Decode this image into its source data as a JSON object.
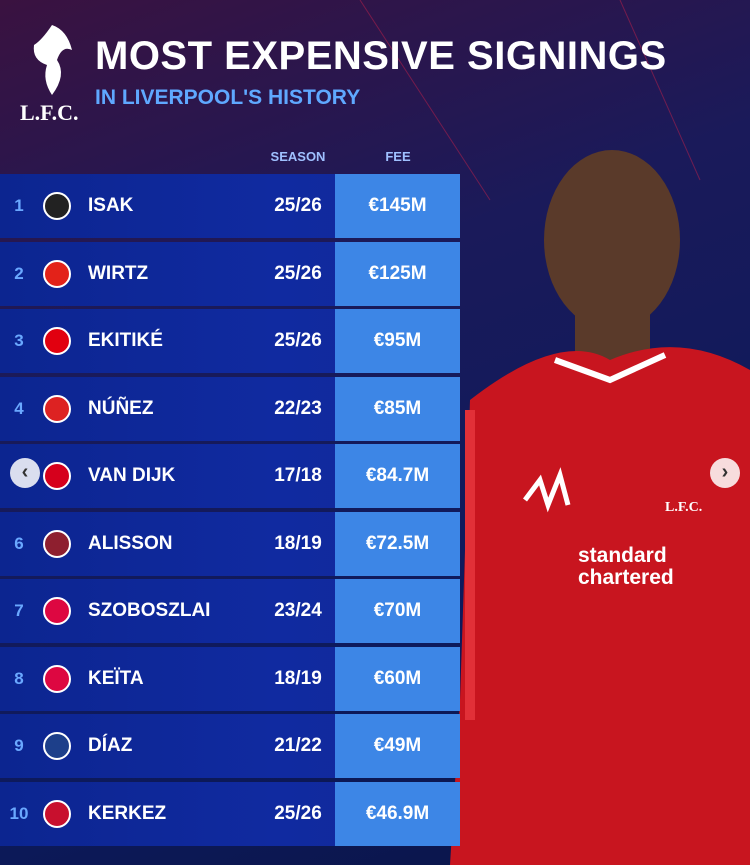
{
  "header": {
    "logo_text": "L.F.C.",
    "title": "MOST EXPENSIVE SIGNINGS",
    "subtitle": "IN LIVERPOOL'S HISTORY"
  },
  "table": {
    "columns": [
      "SEASON",
      "FEE"
    ],
    "rows": [
      {
        "rank": "1",
        "player": "ISAK",
        "season": "25/26",
        "fee": "€145M"
      },
      {
        "rank": "2",
        "player": "WIRTZ",
        "season": "25/26",
        "fee": "€125M"
      },
      {
        "rank": "3",
        "player": "EKITIKÉ",
        "season": "25/26",
        "fee": "€95M"
      },
      {
        "rank": "4",
        "player": "NÚÑEZ",
        "season": "22/23",
        "fee": "€85M"
      },
      {
        "rank": null,
        "player": "VAN DIJK",
        "season": "17/18",
        "fee": "€84.7M"
      },
      {
        "rank": "6",
        "player": "ALISSON",
        "season": "18/19",
        "fee": "€72.5M"
      },
      {
        "rank": "7",
        "player": "SZOBOSZLAI",
        "season": "23/24",
        "fee": "€70M"
      },
      {
        "rank": "8",
        "player": "KEÏTA",
        "season": "18/19",
        "fee": "€60M"
      },
      {
        "rank": "9",
        "player": "DÍAZ",
        "season": "21/22",
        "fee": "€49M"
      },
      {
        "rank": "10",
        "player": "KERKEZ",
        "season": "25/26",
        "fee": "€46.9M"
      }
    ]
  },
  "player_image": {
    "shirt_crest": "L.F.C.",
    "shirt_sponsor": "standard chartered"
  }
}
